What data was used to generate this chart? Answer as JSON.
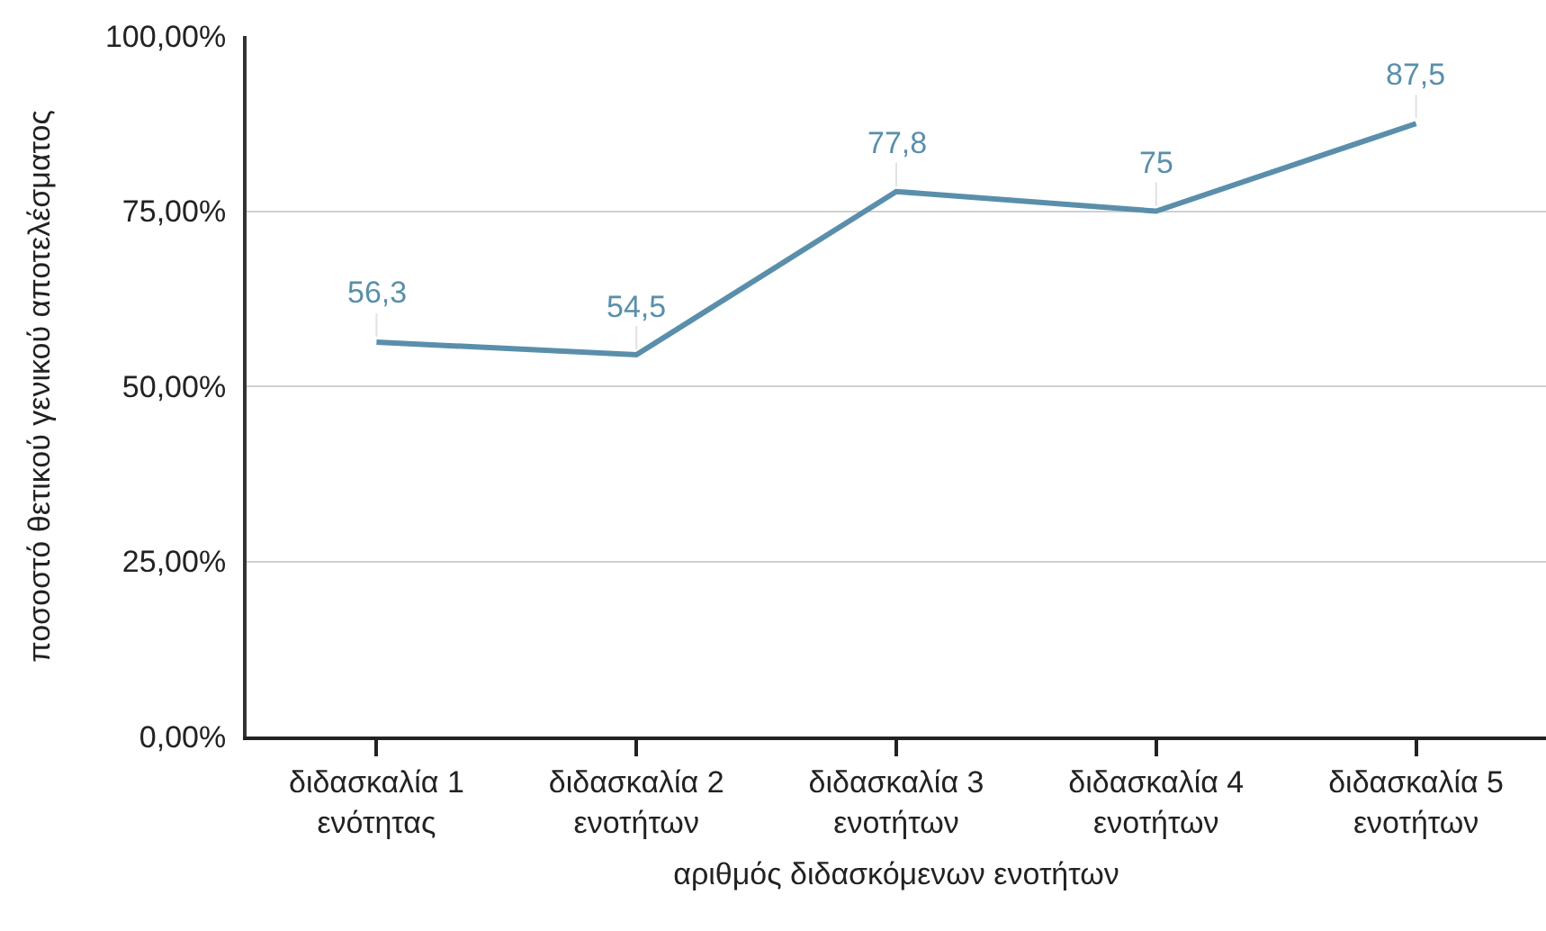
{
  "chart_data": {
    "type": "line",
    "xlabel": "αριθμός διδασκόμενων ενοτήτων",
    "ylabel": "ποσοστό θετικού γενικού αποτελέσματος",
    "categories": [
      "διδασκαλία 1\nενότητας",
      "διδασκαλία 2\nενοτήτων",
      "διδασκαλία 3\nενοτήτων",
      "διδασκαλία 4\nενοτήτων",
      "διδασκαλία 5\nενοτήτων"
    ],
    "series": [
      {
        "color": "#5a8fab",
        "values": [
          56.3,
          54.5,
          77.8,
          75,
          87.5
        ],
        "value_labels": [
          "56,3",
          "54,5",
          "77,8",
          "75",
          "87,5"
        ]
      }
    ],
    "ylim": [
      0,
      100
    ],
    "yticks": [
      {
        "value": 0,
        "label": "0,00%"
      },
      {
        "value": 25,
        "label": "25,00%"
      },
      {
        "value": 50,
        "label": "50,00%"
      },
      {
        "value": 75,
        "label": "75,00%"
      },
      {
        "value": 100,
        "label": "100,00%"
      }
    ],
    "grid": "y",
    "line_style": "solid"
  }
}
